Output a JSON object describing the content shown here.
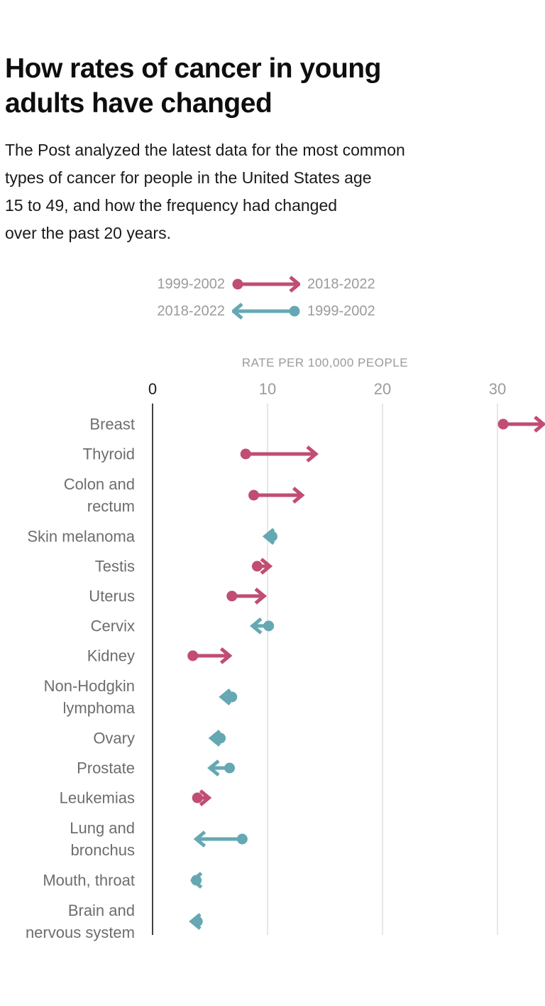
{
  "header": {
    "title": "How rates of cancer in young\nadults have changed",
    "subtitle": "The Post analyzed the latest data for the most common\ntypes of cancer for people in the United States age\n15 to 49, and how the frequency had changed\nover the past 20 years."
  },
  "legend": {
    "rows": [
      {
        "left_label": "1999-2002",
        "right_label": "2018-2022",
        "direction": "right",
        "meaning": "rate increased"
      },
      {
        "left_label": "2018-2022",
        "right_label": "1999-2002",
        "direction": "left",
        "meaning": "rate decreased"
      }
    ]
  },
  "chart_data": {
    "type": "arrow",
    "title": "How rates of cancer in young adults have changed",
    "xlabel": "RATE PER 100,000 PEOPLE",
    "axis_title": "RATE PER 100,000 PEOPLE",
    "ticks": [
      0,
      10,
      20,
      30
    ],
    "xlim": [
      0,
      34.2
    ],
    "grid": true,
    "start_period": "1999-2002",
    "end_period": "2018-2022",
    "colors": {
      "increase": "#c14d72",
      "decrease": "#65a8b3"
    },
    "rows": [
      {
        "label": "Breast",
        "start": 30.5,
        "end": 34.0,
        "trend": "increase"
      },
      {
        "label": "Thyroid",
        "start": 8.1,
        "end": 14.2,
        "trend": "increase"
      },
      {
        "label": "Colon and\nrectum",
        "start": 8.8,
        "end": 13.0,
        "trend": "increase"
      },
      {
        "label": "Skin melanoma",
        "start": 10.4,
        "end": 9.8,
        "trend": "decrease"
      },
      {
        "label": "Testis",
        "start": 9.1,
        "end": 10.2,
        "trend": "increase"
      },
      {
        "label": "Uterus",
        "start": 6.9,
        "end": 9.7,
        "trend": "increase"
      },
      {
        "label": "Cervix",
        "start": 10.1,
        "end": 8.7,
        "trend": "decrease"
      },
      {
        "label": "Kidney",
        "start": 3.5,
        "end": 6.7,
        "trend": "increase"
      },
      {
        "label": "Non-Hodgkin\nlymphoma",
        "start": 6.9,
        "end": 6.0,
        "trend": "decrease"
      },
      {
        "label": "Ovary",
        "start": 5.9,
        "end": 5.1,
        "trend": "decrease"
      },
      {
        "label": "Prostate",
        "start": 6.7,
        "end": 5.0,
        "trend": "decrease"
      },
      {
        "label": "Leukemias",
        "start": 3.9,
        "end": 4.9,
        "trend": "increase"
      },
      {
        "label": "Lung and\nbronchus",
        "start": 7.8,
        "end": 3.8,
        "trend": "decrease"
      },
      {
        "label": "Mouth, throat",
        "start": 3.8,
        "end": 3.5,
        "trend": "decrease"
      },
      {
        "label": "Brain and\nnervous system",
        "start": 3.9,
        "end": 3.4,
        "trend": "decrease"
      }
    ]
  }
}
